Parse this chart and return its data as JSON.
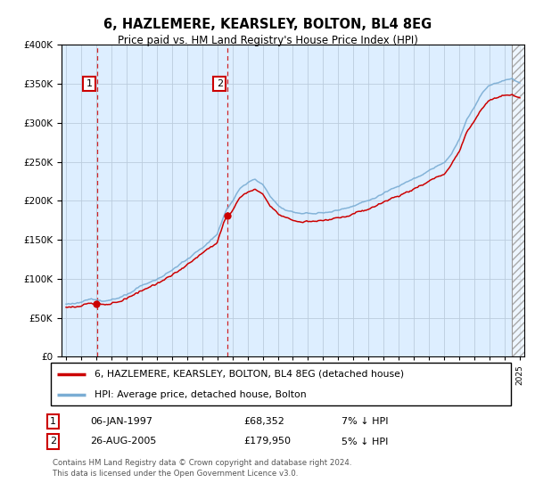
{
  "title": "6, HAZLEMERE, KEARSLEY, BOLTON, BL4 8EG",
  "subtitle": "Price paid vs. HM Land Registry's House Price Index (HPI)",
  "legend_line1": "6, HAZLEMERE, KEARSLEY, BOLTON, BL4 8EG (detached house)",
  "legend_line2": "HPI: Average price, detached house, Bolton",
  "footnote": "Contains HM Land Registry data © Crown copyright and database right 2024.\nThis data is licensed under the Open Government Licence v3.0.",
  "sale1_label": "06-JAN-1997",
  "sale1_price": "£68,352",
  "sale1_hpi": "7% ↓ HPI",
  "sale2_label": "26-AUG-2005",
  "sale2_price": "£179,950",
  "sale2_hpi": "5% ↓ HPI",
  "hpi_color": "#7aadd4",
  "price_color": "#cc0000",
  "bg_color": "#ddeeff",
  "plot_bg": "#ffffff",
  "grid_color": "#bbccdd",
  "ylim": [
    0,
    400000
  ],
  "yticks": [
    0,
    50000,
    100000,
    150000,
    200000,
    250000,
    300000,
    350000,
    400000
  ],
  "sale1_year": 1997.03,
  "sale1_value": 68352,
  "sale2_year": 2005.65,
  "sale2_value": 179950,
  "xmin": 1995,
  "xmax": 2025,
  "hatch_start": 2024.5,
  "hpi_scale": 1.07,
  "prop_scale": 0.95
}
